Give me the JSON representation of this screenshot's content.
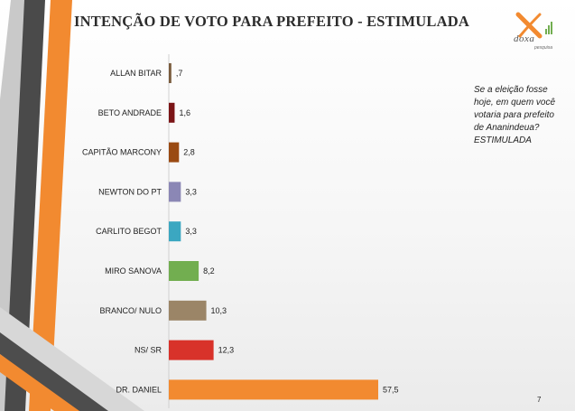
{
  "slide": {
    "title": "INTENÇÃO DE VOTO PARA PREFEITO - ESTIMULADA",
    "question": "Se a eleição fosse hoje, em quem você votaria para prefeito de Ananindeua? ESTIMULADA",
    "page_number": "7",
    "logo": {
      "name": "doxa",
      "subtitle": "pesquisa"
    }
  },
  "colors": {
    "accent_orange": "#F28A30",
    "dark_gray": "#555555"
  },
  "chart_data": {
    "type": "bar",
    "orientation": "horizontal",
    "categories": [
      "ALLAN BITAR",
      "BETO ANDRADE",
      "CAPITÃO MARCONY",
      "NEWTON DO PT",
      "CARLITO BEGOT",
      "MIRO SANOVA",
      "BRANCO/ NULO",
      "NS/ SR",
      "DR. DANIEL"
    ],
    "values": [
      0.7,
      1.6,
      2.8,
      3.3,
      3.3,
      8.2,
      10.3,
      12.3,
      57.5
    ],
    "value_labels": [
      ",7",
      "1,6",
      "2,8",
      "3,3",
      "3,3",
      "8,2",
      "10,3",
      "12,3",
      "57,5"
    ],
    "colors": [
      "#7A5C3E",
      "#7B1416",
      "#9A4A12",
      "#8B87B5",
      "#3BA7C1",
      "#72AE50",
      "#9B8567",
      "#D8322A",
      "#F28A30"
    ],
    "title": "INTENÇÃO DE VOTO PARA PREFEITO - ESTIMULADA",
    "xlim": [
      0,
      57.5
    ],
    "grid": false,
    "legend": "none"
  }
}
